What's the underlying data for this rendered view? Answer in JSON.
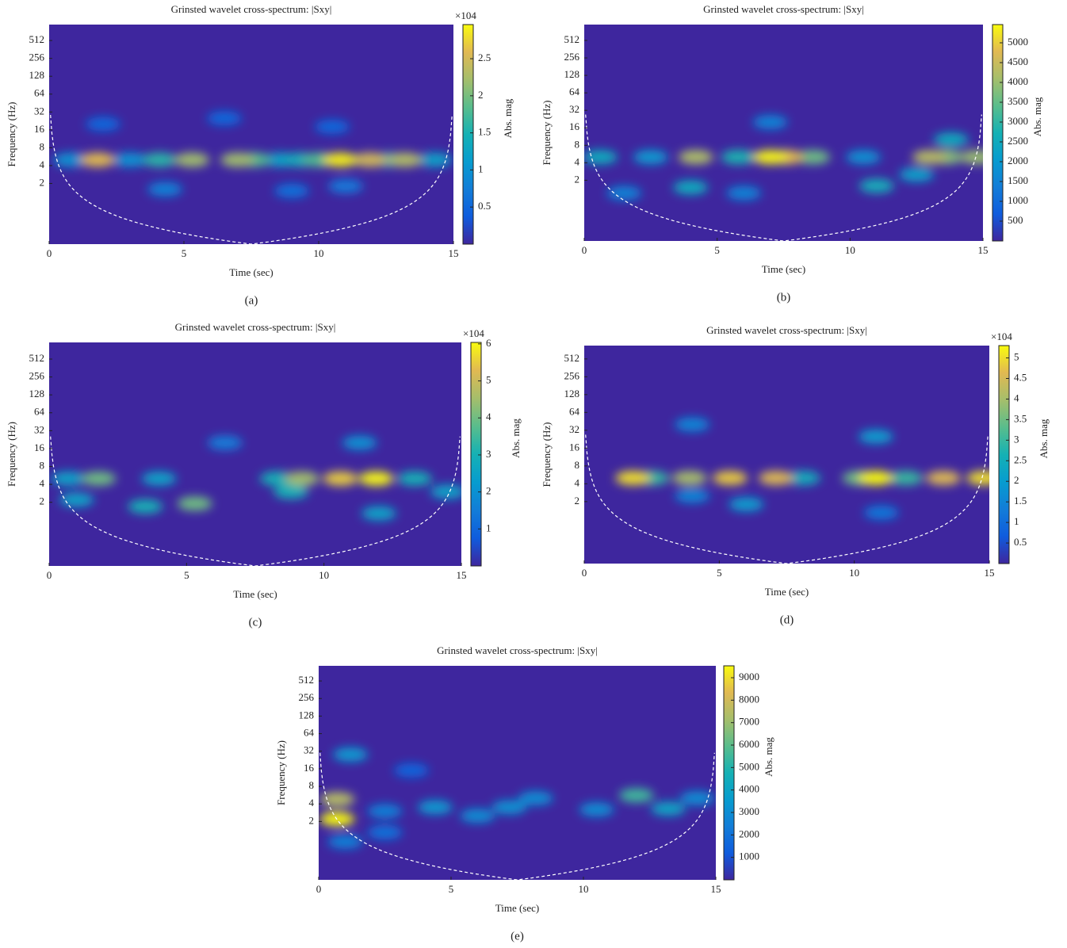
{
  "chart_data": [
    {
      "type": "heatmap",
      "title": "Grinsted wavelet cross-spectrum: |Sxy|",
      "panel_label": "(a)",
      "xlabel": "Time (sec)",
      "ylabel": "Frequency (Hz)",
      "xlim": [
        0,
        15
      ],
      "xticks": [
        0,
        5,
        10,
        15
      ],
      "ylim": [
        0.19,
        950
      ],
      "yscale": "log",
      "yticks": [
        2,
        4,
        8,
        16,
        32,
        64,
        128,
        256,
        512
      ],
      "colormap": "parula",
      "colorbar": {
        "label": "Abs. mag",
        "multiplier": "×104",
        "clim": [
          0,
          2.96
        ],
        "ticks": [
          0.5,
          1,
          1.5,
          2,
          2.5
        ]
      },
      "x": [
        2.0,
        6.5,
        10.5,
        9.0,
        4.3,
        11.0,
        0.8,
        3.0,
        8.6,
        14.3,
        9.3,
        12.6,
        4.1,
        7.6,
        10.0,
        5.3,
        7.0,
        13.2,
        11.9,
        1.8,
        10.8
      ],
      "y": [
        20,
        25,
        18,
        1.5,
        1.6,
        1.8,
        5,
        5,
        5,
        5,
        5,
        5,
        5,
        5,
        5,
        5,
        5,
        5,
        5,
        5,
        5
      ],
      "values": [
        0.5,
        0.5,
        0.5,
        0.6,
        0.8,
        0.7,
        1.0,
        1.0,
        1.2,
        1.2,
        1.4,
        1.5,
        1.6,
        1.8,
        1.8,
        2.2,
        2.2,
        2.3,
        2.5,
        2.6,
        2.9
      ]
    },
    {
      "type": "heatmap",
      "title": "Grinsted wavelet cross-spectrum: |Sxy|",
      "panel_label": "(b)",
      "xlabel": "Time (sec)",
      "ylabel": "Frequency (Hz)",
      "xlim": [
        0,
        15
      ],
      "xticks": [
        0,
        5,
        10,
        15
      ],
      "ylim": [
        0.18,
        960
      ],
      "yscale": "log",
      "yticks": [
        2,
        4,
        8,
        16,
        32,
        64,
        128,
        256,
        512
      ],
      "colormap": "parula",
      "colorbar": {
        "label": "Abs. mag",
        "clim": [
          0,
          5460
        ],
        "ticks": [
          500,
          1000,
          1500,
          2000,
          2500,
          3000,
          3500,
          4000,
          4500,
          5000
        ]
      },
      "x": [
        6.0,
        1.5,
        7.0,
        10.5,
        2.5,
        12.5,
        4.0,
        13.8,
        11.0,
        0.6,
        5.8,
        8.6,
        13.6,
        14.8,
        4.2,
        13.0,
        7.6,
        7.0
      ],
      "y": [
        1.2,
        1.2,
        20,
        5,
        5,
        2.5,
        1.5,
        10,
        1.6,
        5,
        5,
        5,
        5,
        5,
        5,
        5,
        5,
        5
      ],
      "values": [
        1500,
        1500,
        1500,
        1800,
        2000,
        2200,
        2500,
        2500,
        2600,
        2500,
        2800,
        3600,
        3800,
        4000,
        4200,
        4300,
        4800,
        5400
      ]
    },
    {
      "type": "heatmap",
      "title": "Grinsted wavelet cross-spectrum: |Sxy|",
      "panel_label": "(c)",
      "xlabel": "Time (sec)",
      "ylabel": "Frequency (Hz)",
      "xlim": [
        0,
        15
      ],
      "xticks": [
        0,
        5,
        10,
        15
      ],
      "ylim": [
        0.17,
        975
      ],
      "yscale": "log",
      "yticks": [
        2,
        4,
        8,
        16,
        32,
        64,
        128,
        256,
        512
      ],
      "colormap": "parula",
      "colorbar": {
        "label": "Abs. mag",
        "multiplier": "×104",
        "clim": [
          0,
          6.04
        ],
        "ticks": [
          1,
          2,
          3,
          4,
          5,
          6
        ]
      },
      "x": [
        6.4,
        11.3,
        0.7,
        4.0,
        1.0,
        12.0,
        14.5,
        3.5,
        8.3,
        8.8,
        13.3,
        1.8,
        5.3,
        9.2,
        10.6,
        11.9
      ],
      "y": [
        20,
        20,
        5,
        5,
        2.2,
        1.3,
        3,
        1.7,
        5,
        3,
        5,
        5,
        1.9,
        5,
        5,
        5
      ],
      "values": [
        1.5,
        2,
        2.5,
        2.5,
        2.5,
        2.5,
        2.5,
        3,
        3,
        3,
        3,
        4,
        4,
        4.5,
        5.5,
        6
      ]
    },
    {
      "type": "heatmap",
      "title": "Grinsted wavelet cross-spectrum: |Sxy|",
      "panel_label": "(d)",
      "xlabel": "Time (sec)",
      "ylabel": "Frequency (Hz)",
      "xlim": [
        0,
        15
      ],
      "xticks": [
        0,
        5,
        10,
        15
      ],
      "ylim": [
        0.18,
        860
      ],
      "yscale": "log",
      "yticks": [
        2,
        4,
        8,
        16,
        32,
        64,
        128,
        256,
        512
      ],
      "colormap": "parula",
      "colorbar": {
        "label": "Abs. mag",
        "multiplier": "×104",
        "clim": [
          0,
          5.3
        ],
        "ticks": [
          0.5,
          1,
          1.5,
          2,
          2.5,
          3,
          3.5,
          4,
          4.5,
          5
        ]
      },
      "x": [
        11.0,
        4.0,
        4.0,
        6.0,
        10.8,
        8.1,
        2.5,
        11.9,
        10.2,
        3.9,
        7.1,
        13.3,
        5.4,
        1.8,
        14.8,
        10.8
      ],
      "y": [
        1.3,
        2.5,
        40,
        1.8,
        25,
        5,
        5,
        5,
        5,
        5,
        5,
        5,
        5,
        5,
        5,
        5
      ],
      "values": [
        1.2,
        1.5,
        1.5,
        2,
        2,
        2.5,
        3,
        3,
        3.5,
        4,
        4.6,
        4.6,
        4.8,
        5,
        5,
        5.3
      ]
    },
    {
      "type": "heatmap",
      "title": "Grinsted wavelet cross-spectrum: |Sxy|",
      "panel_label": "(e)",
      "xlabel": "Time (sec)",
      "ylabel": "Frequency (Hz)",
      "xlim": [
        0,
        15
      ],
      "xticks": [
        0,
        5,
        10,
        15
      ],
      "ylim": [
        0.2,
        930
      ],
      "yscale": "log",
      "yticks": [
        2,
        4,
        8,
        16,
        32,
        64,
        128,
        256,
        512
      ],
      "colormap": "parula",
      "colorbar": {
        "label": "Abs. mag",
        "clim": [
          0,
          9530
        ],
        "ticks": [
          1000,
          2000,
          3000,
          4000,
          5000,
          6000,
          7000,
          8000,
          9000
        ]
      },
      "x": [
        3.5,
        2.5,
        2.5,
        1.0,
        6.0,
        8.2,
        10.5,
        14.3,
        7.2,
        1.2,
        4.4,
        13.2,
        12.0,
        0.7,
        0.7
      ],
      "y": [
        15,
        1.3,
        3,
        0.9,
        2.5,
        5,
        3.2,
        5,
        3.5,
        28,
        3.5,
        3.3,
        5.6,
        4.8,
        2.2
      ],
      "values": [
        1500,
        2000,
        2500,
        2500,
        3000,
        3000,
        3000,
        3000,
        3200,
        3500,
        3500,
        4000,
        5500,
        7500,
        9500
      ]
    }
  ]
}
